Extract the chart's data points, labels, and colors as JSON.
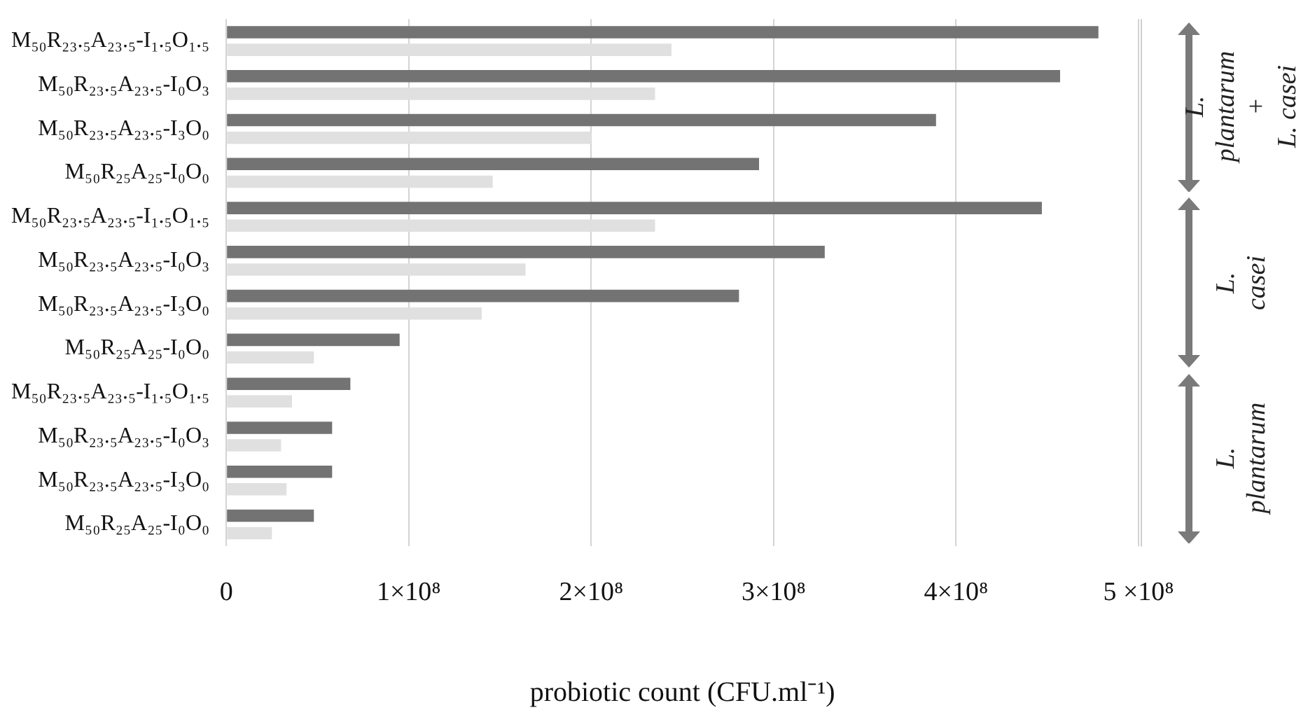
{
  "chart_data": {
    "type": "bar",
    "orientation": "horizontal",
    "xlabel": "probiotic count (CFU.ml⁻¹)",
    "categories": [
      "M₅₀R₂₃.₅A₂₃.₅-I₁.₅O₁.₅",
      "M₅₀R₂₃.₅A₂₃.₅-I₀O₃",
      "M₅₀R₂₃.₅A₂₃.₅-I₃O₀",
      "M₅₀R₂₅A₂₅-I₀O₀",
      "M₅₀R₂₃.₅A₂₃.₅-I₁.₅O₁.₅",
      "M₅₀R₂₃.₅A₂₃.₅-I₀O₃",
      "M₅₀R₂₃.₅A₂₃.₅-I₃O₀",
      "M₅₀R₂₅A₂₅-I₀O₀",
      "M₅₀R₂₃.₅A₂₃.₅-I₁.₅O₁.₅",
      "M₅₀R₂₃.₅A₂₃.₅-I₀O₃",
      "M₅₀R₂₃.₅A₂₃.₅-I₃O₀",
      "M₅₀R₂₅A₂₅-I₀O₀"
    ],
    "series": [
      {
        "color": "#737373",
        "values": [
          478000000,
          457000000,
          389000000,
          292000000,
          447000000,
          328000000,
          281000000,
          95000000,
          68000000,
          58000000,
          58000000,
          48000000
        ]
      },
      {
        "color": "#e0e0e0",
        "values": [
          244000000,
          235000000,
          200000000,
          146000000,
          235000000,
          164000000,
          140000000,
          48000000,
          36000000,
          30000000,
          33000000,
          25000000
        ]
      }
    ],
    "xlim": [
      0,
      500000000
    ],
    "xticks": [
      0,
      {
        "value": 100000000,
        "label": "1×10⁸"
      },
      {
        "value": 200000000,
        "label": "2×10⁸"
      },
      {
        "value": 300000000,
        "label": "3×10⁸"
      },
      {
        "value": 400000000,
        "label": "4×10⁸"
      },
      {
        "value": 500000000,
        "label": "5 ×10⁸"
      }
    ],
    "grid": "x",
    "annotations": [
      "L. plantarum\n+\nL. casei",
      "L. casei",
      "L. plantarum"
    ]
  }
}
